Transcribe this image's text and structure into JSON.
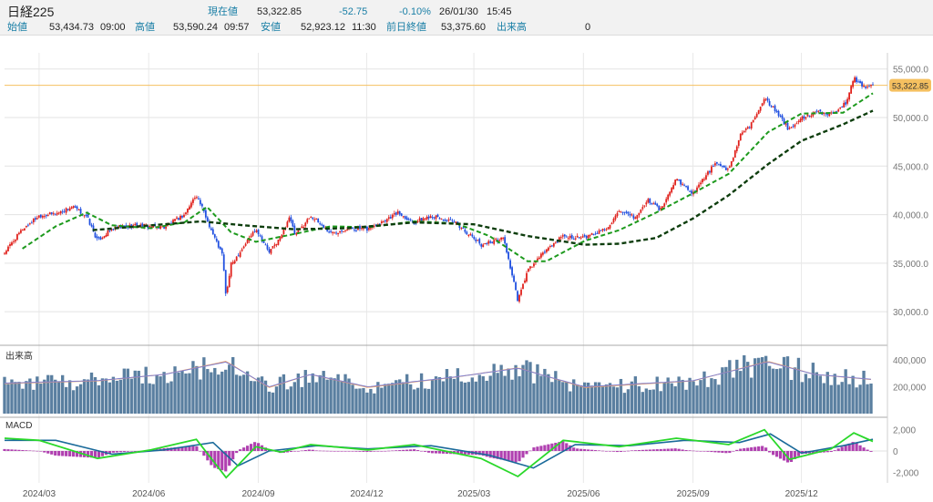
{
  "header": {
    "title": "日経225",
    "current_label": "現在値",
    "current_value": "53,322.85",
    "change": "-52.75",
    "change_pct": "-0.10%",
    "date": "26/01/30",
    "time": "15:45",
    "open_label": "始値",
    "open_value": "53,434.73",
    "open_time": "09:00",
    "high_label": "高値",
    "high_value": "53,590.24",
    "high_time": "09:57",
    "low_label": "安値",
    "low_value": "52,923.12",
    "low_time": "11:30",
    "prev_close_label": "前日終値",
    "prev_close_value": "53,375.60",
    "volume_label": "出来高",
    "volume_value": "0"
  },
  "colors": {
    "up": "#e0201b",
    "down": "#1f4fe0",
    "ma_short": "#1d9a1d",
    "ma_long": "#0d3d0d",
    "current_line": "#f5c060",
    "price_tag": "#f5c060",
    "volume_bar": "#5a7fa0",
    "volume_avg_short": "#f0a060",
    "volume_avg_long": "#8080d0",
    "macd_line": "#2ad82a",
    "signal_line": "#1a6a9a",
    "hist": "#b040b0"
  },
  "chart_data": [
    {
      "type": "candlestick",
      "title": "日経225",
      "x_ticks": [
        "2024/03",
        "2024/06",
        "2024/09",
        "2024/12",
        "2025/03",
        "2025/06",
        "2025/09",
        "2025/12"
      ],
      "y_ticks": [
        "55,000.0",
        "50,000.0",
        "45,000.0",
        "40,000.0",
        "35,000.0",
        "30,000.0"
      ],
      "ylim": [
        28700,
        56100
      ],
      "current_price": 53322.85,
      "current_price_label": "53,322.85",
      "close_series": [
        {
          "date": "2024-02-01",
          "value": 36100
        },
        {
          "date": "2024-02-16",
          "value": 38500
        },
        {
          "date": "2024-03-01",
          "value": 39900
        },
        {
          "date": "2024-03-15",
          "value": 40100
        },
        {
          "date": "2024-03-29",
          "value": 40800
        },
        {
          "date": "2024-04-10",
          "value": 39800
        },
        {
          "date": "2024-04-19",
          "value": 37300
        },
        {
          "date": "2024-05-01",
          "value": 38500
        },
        {
          "date": "2024-05-20",
          "value": 38900
        },
        {
          "date": "2024-06-14",
          "value": 38700
        },
        {
          "date": "2024-07-01",
          "value": 40000
        },
        {
          "date": "2024-07-11",
          "value": 42100
        },
        {
          "date": "2024-07-25",
          "value": 38000
        },
        {
          "date": "2024-08-02",
          "value": 35800
        },
        {
          "date": "2024-08-05",
          "value": 31500
        },
        {
          "date": "2024-08-09",
          "value": 34800
        },
        {
          "date": "2024-08-30",
          "value": 38600
        },
        {
          "date": "2024-09-10",
          "value": 36100
        },
        {
          "date": "2024-09-20",
          "value": 37700
        },
        {
          "date": "2024-09-27",
          "value": 39800
        },
        {
          "date": "2024-10-02",
          "value": 37800
        },
        {
          "date": "2024-10-15",
          "value": 39900
        },
        {
          "date": "2024-11-01",
          "value": 38100
        },
        {
          "date": "2024-11-15",
          "value": 38600
        },
        {
          "date": "2024-12-02",
          "value": 38500
        },
        {
          "date": "2024-12-27",
          "value": 40200
        },
        {
          "date": "2025-01-10",
          "value": 39200
        },
        {
          "date": "2025-01-24",
          "value": 39900
        },
        {
          "date": "2025-02-14",
          "value": 39100
        },
        {
          "date": "2025-03-07",
          "value": 36900
        },
        {
          "date": "2025-03-26",
          "value": 37600
        },
        {
          "date": "2025-04-07",
          "value": 31100
        },
        {
          "date": "2025-04-15",
          "value": 34200
        },
        {
          "date": "2025-05-01",
          "value": 36400
        },
        {
          "date": "2025-05-15",
          "value": 37800
        },
        {
          "date": "2025-06-02",
          "value": 37600
        },
        {
          "date": "2025-06-20",
          "value": 38600
        },
        {
          "date": "2025-07-01",
          "value": 40200
        },
        {
          "date": "2025-07-15",
          "value": 39700
        },
        {
          "date": "2025-07-25",
          "value": 41500
        },
        {
          "date": "2025-08-05",
          "value": 40500
        },
        {
          "date": "2025-08-18",
          "value": 43700
        },
        {
          "date": "2025-09-01",
          "value": 42200
        },
        {
          "date": "2025-09-19",
          "value": 45200
        },
        {
          "date": "2025-10-01",
          "value": 44600
        },
        {
          "date": "2025-10-10",
          "value": 48000
        },
        {
          "date": "2025-10-20",
          "value": 49300
        },
        {
          "date": "2025-10-31",
          "value": 52100
        },
        {
          "date": "2025-11-10",
          "value": 50500
        },
        {
          "date": "2025-11-21",
          "value": 48700
        },
        {
          "date": "2025-12-01",
          "value": 49900
        },
        {
          "date": "2025-12-12",
          "value": 50500
        },
        {
          "date": "2025-12-26",
          "value": 50400
        },
        {
          "date": "2026-01-08",
          "value": 51500
        },
        {
          "date": "2026-01-14",
          "value": 54100
        },
        {
          "date": "2026-01-22",
          "value": 53200
        },
        {
          "date": "2026-01-30",
          "value": 53322.85
        }
      ],
      "ma_short_series": [
        {
          "date": "2024-02-16",
          "value": 36500
        },
        {
          "date": "2024-03-15",
          "value": 38800
        },
        {
          "date": "2024-04-10",
          "value": 40200
        },
        {
          "date": "2024-05-01",
          "value": 38900
        },
        {
          "date": "2024-06-03",
          "value": 38600
        },
        {
          "date": "2024-07-01",
          "value": 39200
        },
        {
          "date": "2024-07-20",
          "value": 40800
        },
        {
          "date": "2024-08-09",
          "value": 38200
        },
        {
          "date": "2024-08-30",
          "value": 37200
        },
        {
          "date": "2024-10-01",
          "value": 38000
        },
        {
          "date": "2024-11-01",
          "value": 38800
        },
        {
          "date": "2024-12-02",
          "value": 38700
        },
        {
          "date": "2025-01-10",
          "value": 39300
        },
        {
          "date": "2025-02-14",
          "value": 39100
        },
        {
          "date": "2025-03-14",
          "value": 37800
        },
        {
          "date": "2025-04-15",
          "value": 35200
        },
        {
          "date": "2025-05-01",
          "value": 35200
        },
        {
          "date": "2025-06-02",
          "value": 37300
        },
        {
          "date": "2025-07-01",
          "value": 38400
        },
        {
          "date": "2025-08-01",
          "value": 40200
        },
        {
          "date": "2025-09-01",
          "value": 42200
        },
        {
          "date": "2025-10-01",
          "value": 44200
        },
        {
          "date": "2025-11-03",
          "value": 48500
        },
        {
          "date": "2025-12-01",
          "value": 50400
        },
        {
          "date": "2026-01-05",
          "value": 50500
        },
        {
          "date": "2026-01-30",
          "value": 52500
        }
      ],
      "ma_long_series": [
        {
          "date": "2024-04-15",
          "value": 38400
        },
        {
          "date": "2024-06-03",
          "value": 38900
        },
        {
          "date": "2024-07-15",
          "value": 39300
        },
        {
          "date": "2024-08-20",
          "value": 38900
        },
        {
          "date": "2024-10-01",
          "value": 38500
        },
        {
          "date": "2024-11-15",
          "value": 38600
        },
        {
          "date": "2025-01-10",
          "value": 39200
        },
        {
          "date": "2025-03-01",
          "value": 39000
        },
        {
          "date": "2025-04-15",
          "value": 37800
        },
        {
          "date": "2025-06-02",
          "value": 36900
        },
        {
          "date": "2025-07-01",
          "value": 37000
        },
        {
          "date": "2025-08-01",
          "value": 37600
        },
        {
          "date": "2025-09-01",
          "value": 39600
        },
        {
          "date": "2025-10-01",
          "value": 42000
        },
        {
          "date": "2025-11-03",
          "value": 45200
        },
        {
          "date": "2025-12-01",
          "value": 47600
        },
        {
          "date": "2026-01-05",
          "value": 49300
        },
        {
          "date": "2026-01-30",
          "value": 50700
        }
      ]
    },
    {
      "type": "bar",
      "title": "出来高",
      "y_ticks": [
        "400,000",
        "200,000"
      ],
      "ylim": [
        0,
        480000
      ],
      "volume_series": [
        {
          "date": "2024-02-01",
          "value": 230000
        },
        {
          "date": "2024-04-19",
          "value": 250000
        },
        {
          "date": "2024-06-14",
          "value": 300000
        },
        {
          "date": "2024-08-05",
          "value": 400000
        },
        {
          "date": "2024-09-10",
          "value": 200000
        },
        {
          "date": "2024-10-15",
          "value": 300000
        },
        {
          "date": "2024-12-02",
          "value": 200000
        },
        {
          "date": "2025-02-14",
          "value": 280000
        },
        {
          "date": "2025-04-07",
          "value": 350000
        },
        {
          "date": "2025-06-02",
          "value": 200000
        },
        {
          "date": "2025-09-01",
          "value": 250000
        },
        {
          "date": "2025-11-03",
          "value": 400000
        },
        {
          "date": "2025-12-12",
          "value": 300000
        },
        {
          "date": "2026-01-30",
          "value": 260000
        }
      ]
    },
    {
      "type": "line",
      "title": "MACD",
      "y_ticks": [
        "2,000",
        "0",
        "-2,000"
      ],
      "ylim": [
        -3000,
        3000
      ],
      "macd_series": [
        {
          "date": "2024-02-01",
          "value": 1200
        },
        {
          "date": "2024-03-01",
          "value": 1000
        },
        {
          "date": "2024-04-19",
          "value": -700
        },
        {
          "date": "2024-06-03",
          "value": 100
        },
        {
          "date": "2024-07-11",
          "value": 1100
        },
        {
          "date": "2024-08-05",
          "value": -2500
        },
        {
          "date": "2024-08-30",
          "value": 400
        },
        {
          "date": "2024-09-20",
          "value": -100
        },
        {
          "date": "2024-10-15",
          "value": 600
        },
        {
          "date": "2024-12-02",
          "value": 100
        },
        {
          "date": "2025-01-10",
          "value": 600
        },
        {
          "date": "2025-03-07",
          "value": -700
        },
        {
          "date": "2025-04-07",
          "value": -2400
        },
        {
          "date": "2025-05-15",
          "value": 1000
        },
        {
          "date": "2025-07-01",
          "value": 400
        },
        {
          "date": "2025-08-18",
          "value": 1200
        },
        {
          "date": "2025-10-01",
          "value": 600
        },
        {
          "date": "2025-10-31",
          "value": 2000
        },
        {
          "date": "2025-11-21",
          "value": -800
        },
        {
          "date": "2025-12-26",
          "value": 200
        },
        {
          "date": "2026-01-14",
          "value": 1700
        },
        {
          "date": "2026-01-30",
          "value": 900
        }
      ],
      "signal_series": [
        {
          "date": "2024-02-01",
          "value": 1000
        },
        {
          "date": "2024-03-15",
          "value": 1000
        },
        {
          "date": "2024-05-01",
          "value": -300
        },
        {
          "date": "2024-06-14",
          "value": 100
        },
        {
          "date": "2024-07-25",
          "value": 800
        },
        {
          "date": "2024-08-15",
          "value": -1400
        },
        {
          "date": "2024-09-10",
          "value": 0
        },
        {
          "date": "2024-10-20",
          "value": 500
        },
        {
          "date": "2024-12-02",
          "value": 200
        },
        {
          "date": "2025-01-24",
          "value": 500
        },
        {
          "date": "2025-03-14",
          "value": -400
        },
        {
          "date": "2025-04-20",
          "value": -1600
        },
        {
          "date": "2025-05-25",
          "value": 600
        },
        {
          "date": "2025-07-10",
          "value": 500
        },
        {
          "date": "2025-08-25",
          "value": 1000
        },
        {
          "date": "2025-10-10",
          "value": 800
        },
        {
          "date": "2025-11-05",
          "value": 1600
        },
        {
          "date": "2025-12-01",
          "value": -200
        },
        {
          "date": "2026-01-05",
          "value": 500
        },
        {
          "date": "2026-01-30",
          "value": 1100
        }
      ]
    }
  ]
}
